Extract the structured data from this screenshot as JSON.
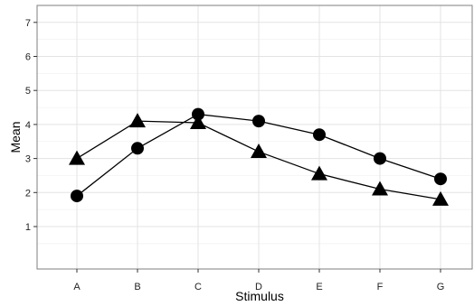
{
  "chart_data": {
    "type": "line",
    "xlabel": "Stimulus",
    "ylabel": "Mean",
    "categories": [
      "A",
      "B",
      "C",
      "D",
      "E",
      "F",
      "G"
    ],
    "y_ticks": [
      1,
      2,
      3,
      4,
      5,
      6,
      7
    ],
    "ylim": [
      -0.2,
      7.4
    ],
    "grid": true,
    "legend": "none",
    "series": [
      {
        "marker": "triangle",
        "values": [
          3.0,
          4.1,
          4.05,
          3.2,
          2.55,
          2.1,
          1.8
        ]
      },
      {
        "marker": "circle",
        "values": [
          1.9,
          3.3,
          4.3,
          4.1,
          3.7,
          3.0,
          2.4
        ]
      }
    ],
    "colors": {
      "line": "#000000",
      "marker": "#000000",
      "grid_major": "#e3e3e3",
      "grid_minor": "#f2f2f2",
      "panel_border": "#7f7f7f"
    }
  }
}
